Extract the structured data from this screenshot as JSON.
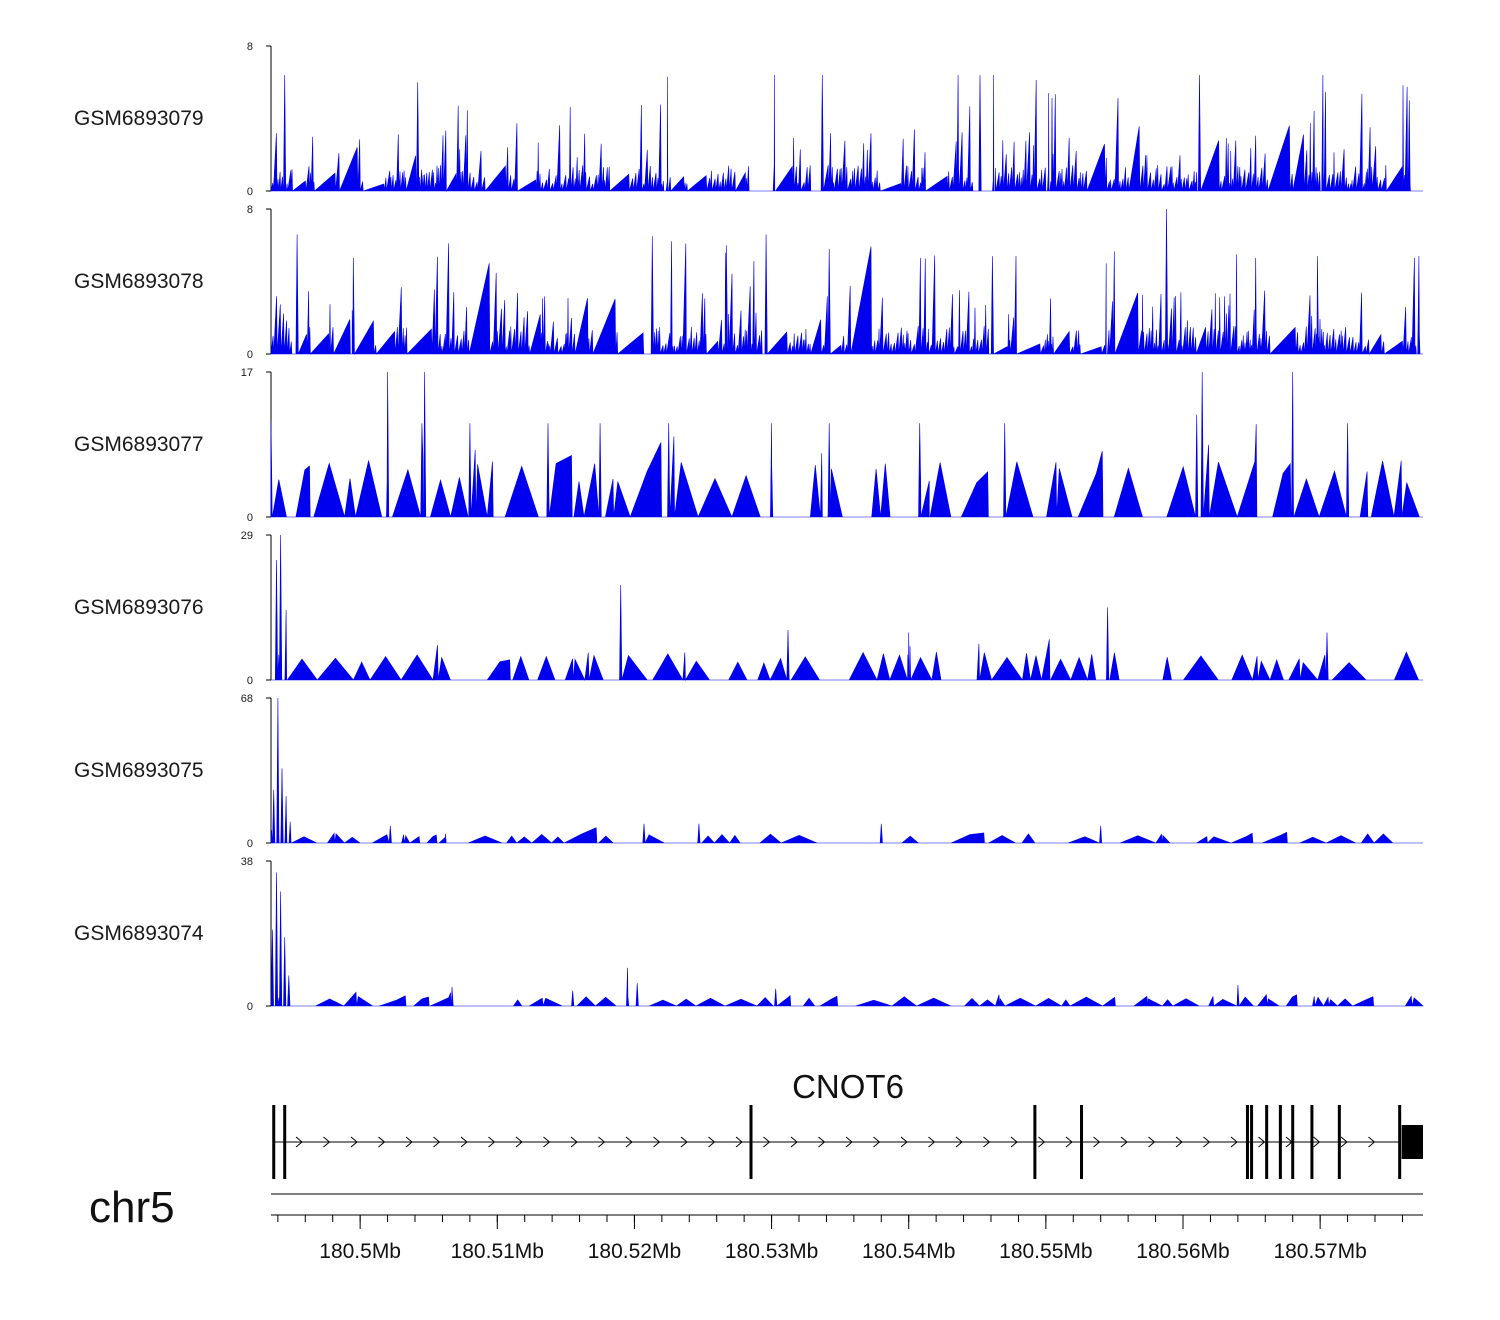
{
  "chart_data": {
    "type": "area",
    "chromosome": "chr5",
    "x_range_mb": [
      180.4935,
      180.5775
    ],
    "x_axis": {
      "ticks": [
        180.5,
        180.51,
        180.52,
        180.53,
        180.54,
        180.55,
        180.56,
        180.57
      ],
      "tick_labels": [
        "180.5Mb",
        "180.51Mb",
        "180.52Mb",
        "180.53Mb",
        "180.54Mb",
        "180.55Mb",
        "180.56Mb",
        "180.57Mb"
      ]
    },
    "color": "#0000ee",
    "tracks": [
      {
        "name": "GSM6893079",
        "ymax": 8,
        "ymin_label": "0",
        "ymax_label": "8",
        "style": "dense",
        "baseline": 1.2,
        "seed": 11,
        "peaks": [
          {
            "x": 180.4945,
            "y": 6.4
          },
          {
            "x": 180.5042,
            "y": 6.0
          },
          {
            "x": 180.5224,
            "y": 6.3
          },
          {
            "x": 180.5302,
            "y": 6.4
          },
          {
            "x": 180.5337,
            "y": 6.4
          },
          {
            "x": 180.5436,
            "y": 6.4
          },
          {
            "x": 180.5452,
            "y": 6.4
          },
          {
            "x": 180.5462,
            "y": 6.4
          },
          {
            "x": 180.5502,
            "y": 5.4
          },
          {
            "x": 180.5612,
            "y": 6.4
          },
          {
            "x": 180.5702,
            "y": 6.4
          },
          {
            "x": 180.5765,
            "y": 5.0
          }
        ]
      },
      {
        "name": "GSM6893078",
        "ymax": 8,
        "ymin_label": "0",
        "ymax_label": "8",
        "style": "dense",
        "baseline": 1.3,
        "seed": 23,
        "peaks": [
          {
            "x": 180.4954,
            "y": 6.6
          },
          {
            "x": 180.4995,
            "y": 5.3
          },
          {
            "x": 180.5213,
            "y": 6.5
          },
          {
            "x": 180.5267,
            "y": 6.0
          },
          {
            "x": 180.5296,
            "y": 6.6
          },
          {
            "x": 180.5342,
            "y": 5.8
          },
          {
            "x": 180.5461,
            "y": 5.4
          },
          {
            "x": 180.5544,
            "y": 5.0
          },
          {
            "x": 180.5588,
            "y": 8.0
          },
          {
            "x": 180.5653,
            "y": 5.3
          },
          {
            "x": 180.5698,
            "y": 5.4
          },
          {
            "x": 180.5772,
            "y": 5.4
          }
        ]
      },
      {
        "name": "GSM6893077",
        "ymax": 17,
        "ymin_label": "0",
        "ymax_label": "17",
        "style": "triangles",
        "tri_height": 5.3,
        "seed": 37,
        "peaks": [
          {
            "x": 180.4935,
            "y": 11.3
          },
          {
            "x": 180.502,
            "y": 17.0
          },
          {
            "x": 180.5047,
            "y": 17.0
          },
          {
            "x": 180.5045,
            "y": 11.0
          },
          {
            "x": 180.508,
            "y": 11.0
          },
          {
            "x": 180.5137,
            "y": 11.0
          },
          {
            "x": 180.5175,
            "y": 11.0
          },
          {
            "x": 180.5225,
            "y": 11.0
          },
          {
            "x": 180.53,
            "y": 11.0
          },
          {
            "x": 180.5342,
            "y": 11.0
          },
          {
            "x": 180.5408,
            "y": 11.0
          },
          {
            "x": 180.547,
            "y": 11.0
          },
          {
            "x": 180.561,
            "y": 12.0
          },
          {
            "x": 180.5614,
            "y": 17.0
          },
          {
            "x": 180.568,
            "y": 17.0
          },
          {
            "x": 180.572,
            "y": 11.0
          }
        ]
      },
      {
        "name": "GSM6893076",
        "ymax": 29,
        "ymin_label": "0",
        "ymax_label": "29",
        "style": "triangles",
        "tri_height": 4.5,
        "seed": 51,
        "peaks": [
          {
            "x": 180.4939,
            "y": 24.0
          },
          {
            "x": 180.4942,
            "y": 29.0
          },
          {
            "x": 180.4946,
            "y": 14.0
          },
          {
            "x": 180.519,
            "y": 19.0
          },
          {
            "x": 180.5312,
            "y": 10.0
          },
          {
            "x": 180.54,
            "y": 9.5
          },
          {
            "x": 180.5545,
            "y": 14.5
          },
          {
            "x": 180.5705,
            "y": 9.5
          }
        ]
      },
      {
        "name": "GSM6893075",
        "ymax": 68,
        "ymin_label": "0",
        "ymax_label": "68",
        "style": "triangles",
        "tri_height": 3.5,
        "seed": 67,
        "peaks": [
          {
            "x": 180.4937,
            "y": 25.0
          },
          {
            "x": 180.494,
            "y": 68.0
          },
          {
            "x": 180.4943,
            "y": 35.0
          },
          {
            "x": 180.4946,
            "y": 22.0
          },
          {
            "x": 180.4949,
            "y": 10.0
          },
          {
            "x": 180.5022,
            "y": 8.0
          },
          {
            "x": 180.5207,
            "y": 9.0
          },
          {
            "x": 180.5247,
            "y": 9.0
          },
          {
            "x": 180.538,
            "y": 9.0
          },
          {
            "x": 180.554,
            "y": 8.0
          }
        ]
      },
      {
        "name": "GSM6893074",
        "ymax": 38,
        "ymin_label": "0",
        "ymax_label": "38",
        "style": "triangles",
        "tri_height": 2.0,
        "seed": 83,
        "peaks": [
          {
            "x": 180.4936,
            "y": 20.0
          },
          {
            "x": 180.4939,
            "y": 35.0
          },
          {
            "x": 180.4942,
            "y": 30.0
          },
          {
            "x": 180.4945,
            "y": 18.0
          },
          {
            "x": 180.4948,
            "y": 8.0
          },
          {
            "x": 180.5067,
            "y": 5.0
          },
          {
            "x": 180.5155,
            "y": 4.0
          },
          {
            "x": 180.5195,
            "y": 10.0
          },
          {
            "x": 180.5202,
            "y": 6.0
          },
          {
            "x": 180.5303,
            "y": 4.5
          },
          {
            "x": 180.564,
            "y": 5.5
          }
        ]
      }
    ],
    "gene": {
      "name": "CNOT6",
      "strand": "+",
      "exons_mb": [
        180.4937,
        180.4945,
        180.5285,
        180.5492,
        180.5526,
        180.5647,
        180.565,
        180.5661,
        180.5671,
        180.568,
        180.5694,
        180.5714
      ],
      "utr_end_mb": [
        180.5758,
        180.5775
      ]
    }
  }
}
